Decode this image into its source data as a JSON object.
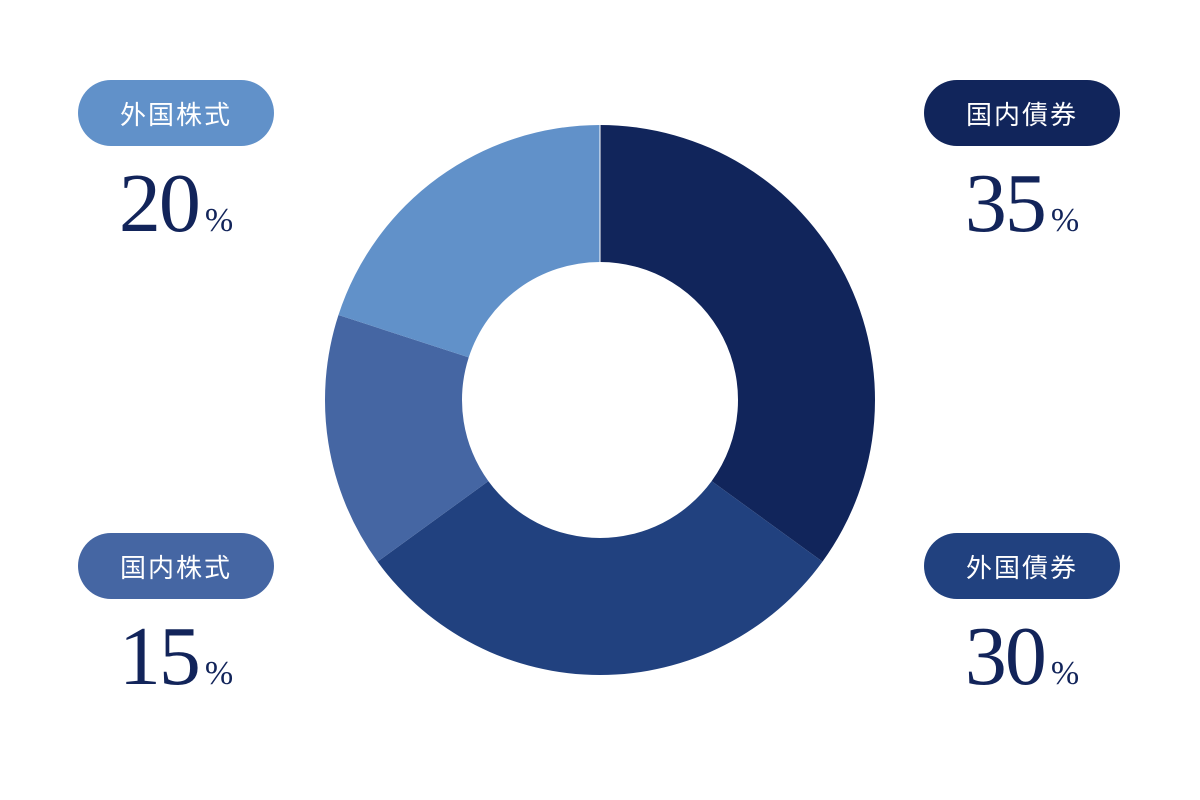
{
  "chart_data": {
    "type": "pie",
    "donut": true,
    "categories": [
      "国内債券",
      "外国債券",
      "国内株式",
      "外国株式"
    ],
    "values": [
      35,
      30,
      15,
      20
    ],
    "unit": "%",
    "colors": [
      "#11255b",
      "#21417f",
      "#4566a3",
      "#6191c9"
    ]
  },
  "legends": {
    "foreign_stock": {
      "label": "外国株式",
      "value": "20",
      "unit": "%",
      "color": "#6191c9"
    },
    "domestic_bond": {
      "label": "国内債券",
      "value": "35",
      "unit": "%",
      "color": "#11255b"
    },
    "domestic_stock": {
      "label": "国内株式",
      "value": "15",
      "unit": "%",
      "color": "#4566a3"
    },
    "foreign_bond": {
      "label": "外国債券",
      "value": "30",
      "unit": "%",
      "color": "#21417f"
    }
  }
}
